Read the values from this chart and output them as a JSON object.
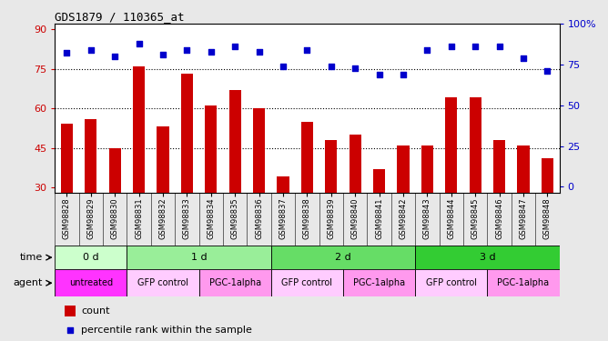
{
  "title": "GDS1879 / 110365_at",
  "samples": [
    "GSM98828",
    "GSM98829",
    "GSM98830",
    "GSM98831",
    "GSM98832",
    "GSM98833",
    "GSM98834",
    "GSM98835",
    "GSM98836",
    "GSM98837",
    "GSM98838",
    "GSM98839",
    "GSM98840",
    "GSM98841",
    "GSM98842",
    "GSM98843",
    "GSM98844",
    "GSM98845",
    "GSM98846",
    "GSM98847",
    "GSM98848"
  ],
  "count_values": [
    54,
    56,
    45,
    76,
    53,
    73,
    61,
    67,
    60,
    34,
    55,
    48,
    50,
    37,
    46,
    46,
    64,
    64,
    48,
    46,
    41
  ],
  "percentile_values": [
    82,
    84,
    80,
    88,
    81,
    84,
    83,
    86,
    83,
    74,
    84,
    74,
    73,
    69,
    69,
    84,
    86,
    86,
    86,
    79,
    71
  ],
  "ylim_left": [
    28,
    92
  ],
  "ylim_right": [
    -3.7,
    100
  ],
  "yticks_left": [
    30,
    45,
    60,
    75,
    90
  ],
  "yticks_right": [
    0,
    25,
    50,
    75,
    100
  ],
  "ytick_right_labels": [
    "0",
    "25",
    "50",
    "75",
    "100%"
  ],
  "bar_color": "#cc0000",
  "dot_color": "#0000cc",
  "dotted_lines": [
    45,
    60,
    75
  ],
  "time_groups": [
    {
      "label": "0 d",
      "start": 0,
      "end": 3,
      "color": "#ccffcc"
    },
    {
      "label": "1 d",
      "start": 3,
      "end": 9,
      "color": "#99ee99"
    },
    {
      "label": "2 d",
      "start": 9,
      "end": 15,
      "color": "#66dd66"
    },
    {
      "label": "3 d",
      "start": 15,
      "end": 21,
      "color": "#33cc33"
    }
  ],
  "agent_groups": [
    {
      "label": "untreated",
      "start": 0,
      "end": 3,
      "color": "#ff33ff"
    },
    {
      "label": "GFP control",
      "start": 3,
      "end": 6,
      "color": "#ffccff"
    },
    {
      "label": "PGC-1alpha",
      "start": 6,
      "end": 9,
      "color": "#ff99ee"
    },
    {
      "label": "GFP control",
      "start": 9,
      "end": 12,
      "color": "#ffccff"
    },
    {
      "label": "PGC-1alpha",
      "start": 12,
      "end": 15,
      "color": "#ff99ee"
    },
    {
      "label": "GFP control",
      "start": 15,
      "end": 18,
      "color": "#ffccff"
    },
    {
      "label": "PGC-1alpha",
      "start": 18,
      "end": 21,
      "color": "#ff99ee"
    }
  ],
  "background_color": "#e8e8e8",
  "plot_bg": "#ffffff",
  "tick_label_color_left": "#cc0000",
  "tick_label_color_right": "#0000cc",
  "time_label": "time",
  "agent_label": "agent",
  "legend_count": "count",
  "legend_percentile": "percentile rank within the sample",
  "xtick_bg": "#d0d0d0"
}
